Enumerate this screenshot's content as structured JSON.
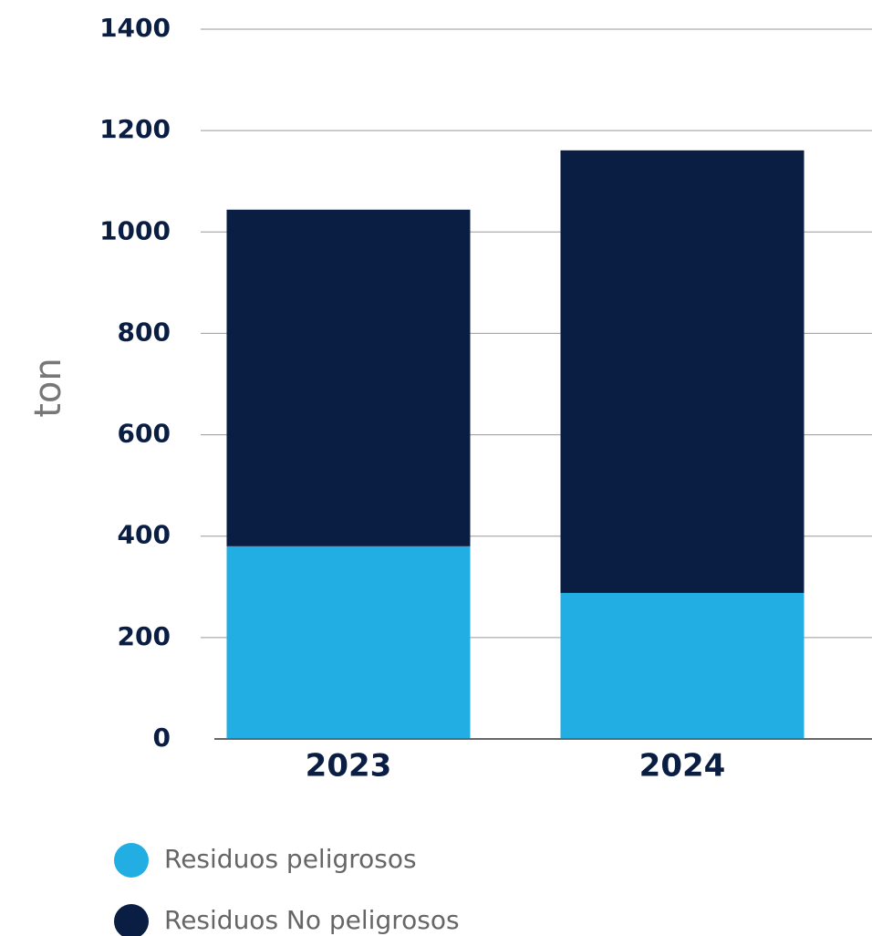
{
  "chart_data": {
    "type": "stacked_bar",
    "ylabel": "ton",
    "categories": [
      "2023",
      "2024"
    ],
    "series": [
      {
        "name": "Residuos peligrosos",
        "color": "#22aee2",
        "values": [
          380,
          288
        ]
      },
      {
        "name": "Residuos No peligrosos",
        "color": "#0a1e44",
        "values": [
          664,
          873
        ]
      }
    ],
    "ylim": [
      0,
      1400
    ],
    "yticks": [
      0,
      200,
      400,
      600,
      800,
      1000,
      1200,
      1400
    ],
    "grid": true
  }
}
